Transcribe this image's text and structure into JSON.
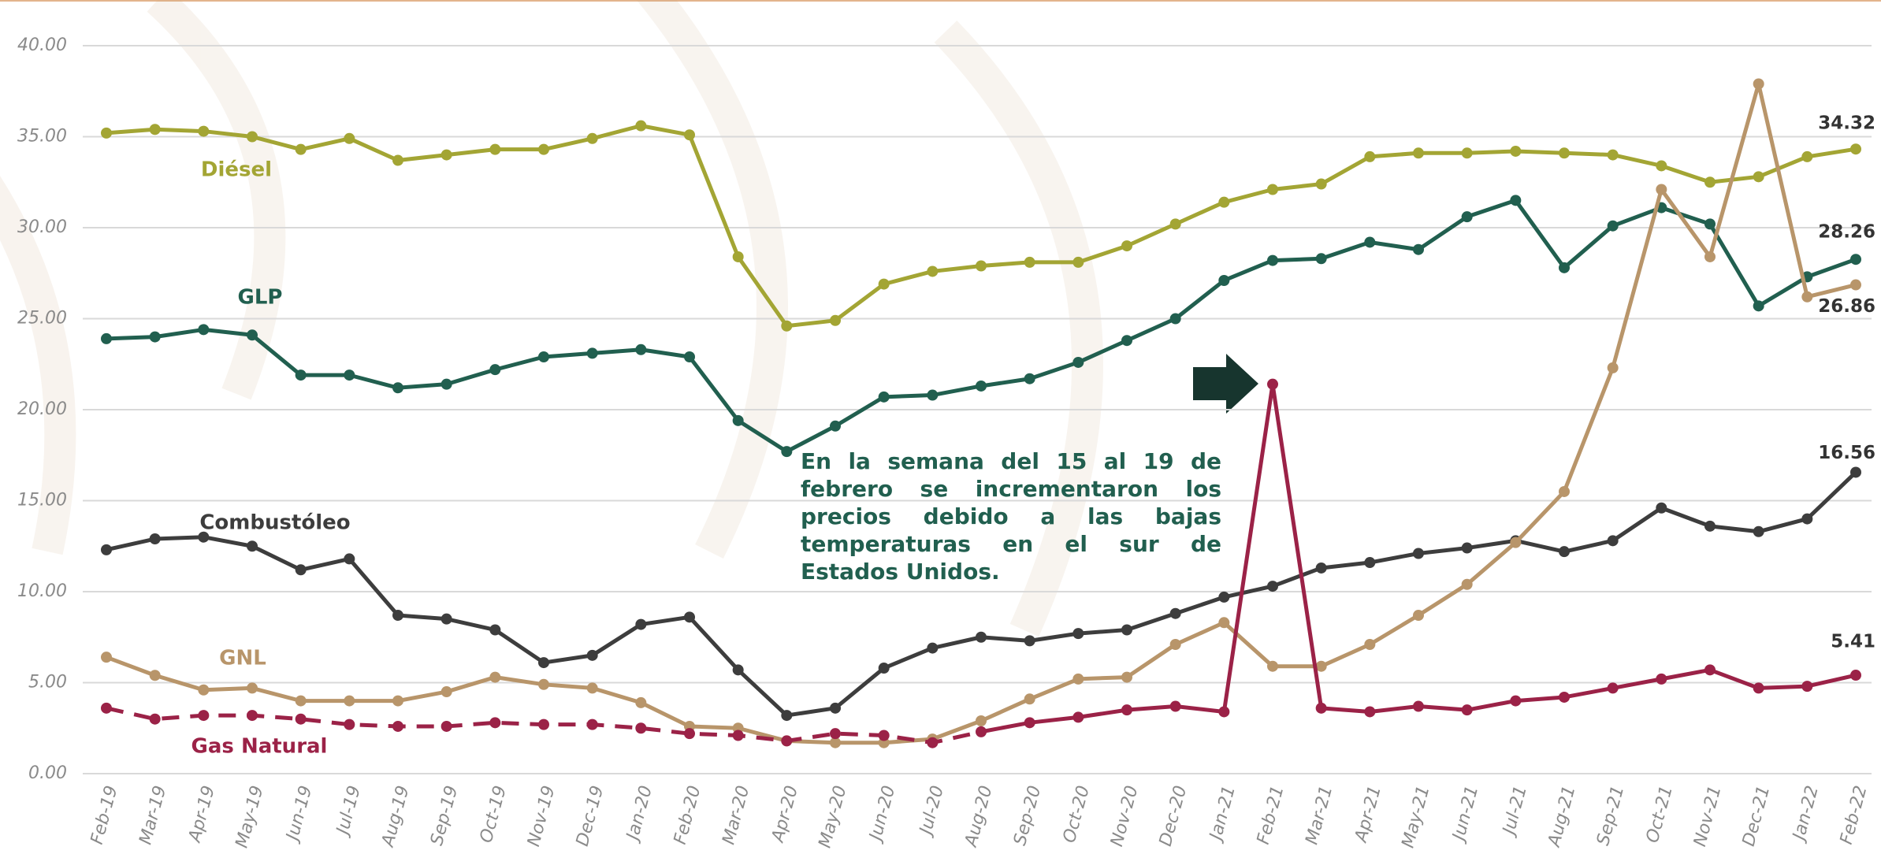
{
  "chart_data": {
    "type": "line",
    "categories": [
      "Feb-19",
      "Mar-19",
      "Apr-19",
      "May-19",
      "Jun-19",
      "Jul-19",
      "Aug-19",
      "Sep-19",
      "Oct-19",
      "Nov-19",
      "Dec-19",
      "Jan-20",
      "Feb-20",
      "Mar-20",
      "Apr-20",
      "May-20",
      "Jun-20",
      "Jul-20",
      "Aug-20",
      "Sep-20",
      "Oct-20",
      "Nov-20",
      "Dec-20",
      "Jan-21",
      "Feb-21",
      "Mar-21",
      "Apr-21",
      "May-21",
      "Jun-21",
      "Jul-21",
      "Aug-21",
      "Sep-21",
      "Oct-21",
      "Nov-21",
      "Dec-21",
      "Jan-22",
      "Feb-22"
    ],
    "series": [
      {
        "name": "Diésel",
        "color": "#a3a534",
        "values": [
          35.2,
          35.4,
          35.3,
          35.0,
          34.3,
          34.9,
          33.7,
          34.0,
          34.3,
          34.3,
          34.9,
          35.6,
          35.1,
          28.4,
          24.6,
          24.9,
          26.9,
          27.6,
          27.9,
          28.1,
          28.1,
          29.0,
          30.2,
          31.4,
          32.1,
          32.4,
          33.9,
          34.1,
          34.1,
          34.2,
          34.1,
          34.0,
          33.4,
          32.5,
          32.8,
          33.9,
          34.32
        ]
      },
      {
        "name": "GLP",
        "color": "#215f4f",
        "values": [
          23.9,
          24.0,
          24.4,
          24.1,
          21.9,
          21.9,
          21.2,
          21.4,
          22.2,
          22.9,
          23.1,
          23.3,
          22.9,
          19.4,
          17.7,
          19.1,
          20.7,
          20.8,
          21.3,
          21.7,
          22.6,
          23.8,
          25.0,
          27.1,
          28.2,
          28.3,
          29.2,
          28.8,
          30.6,
          31.5,
          27.8,
          30.1,
          31.1,
          30.2,
          25.7,
          27.3,
          28.26
        ]
      },
      {
        "name": "Combustóleo",
        "color": "#3d3d3d",
        "values": [
          12.3,
          12.9,
          13.0,
          12.5,
          11.2,
          11.8,
          8.7,
          8.5,
          7.9,
          6.1,
          6.5,
          8.2,
          8.6,
          5.7,
          3.2,
          3.6,
          5.8,
          6.9,
          7.5,
          7.3,
          7.7,
          7.9,
          8.8,
          9.7,
          10.3,
          11.3,
          11.6,
          12.1,
          12.4,
          12.8,
          12.2,
          12.8,
          14.6,
          13.6,
          13.3,
          14.0,
          16.56
        ]
      },
      {
        "name": "GNL",
        "color": "#b8956a",
        "values": [
          6.4,
          5.4,
          4.6,
          4.7,
          4.0,
          4.0,
          4.0,
          4.5,
          5.3,
          4.9,
          4.7,
          3.9,
          2.6,
          2.5,
          1.8,
          1.7,
          1.7,
          1.9,
          2.9,
          4.1,
          5.2,
          5.3,
          7.1,
          8.3,
          5.9,
          5.9,
          7.1,
          8.7,
          10.4,
          12.7,
          15.5,
          22.3,
          32.1,
          28.4,
          37.9,
          26.2,
          26.86
        ]
      },
      {
        "name": "Gas Natural",
        "color": "#9b2247",
        "dashed_through": "Aug-20",
        "values": [
          3.6,
          3.0,
          3.2,
          3.2,
          3.0,
          2.7,
          2.6,
          2.6,
          2.8,
          2.7,
          2.7,
          2.5,
          2.2,
          2.1,
          1.8,
          2.2,
          2.1,
          1.7,
          2.3,
          2.8,
          3.1,
          3.5,
          3.7,
          3.4,
          21.4,
          3.6,
          3.4,
          3.7,
          3.5,
          4.0,
          4.2,
          4.7,
          5.2,
          5.7,
          4.7,
          4.8,
          5.41
        ]
      }
    ],
    "ylim": [
      0,
      40
    ],
    "yticks": [
      {
        "value": 0,
        "label": "0.00"
      },
      {
        "value": 5,
        "label": "5.00"
      },
      {
        "value": 10,
        "label": "10.00"
      },
      {
        "value": 15,
        "label": "15.00"
      },
      {
        "value": 20,
        "label": "20.00"
      },
      {
        "value": 25,
        "label": "25.00"
      },
      {
        "value": 30,
        "label": "30.00"
      },
      {
        "value": 35,
        "label": "35.00"
      },
      {
        "value": 40,
        "label": "40.00"
      }
    ],
    "grid": true,
    "annotation": "En la semana del 15 al 19 de febrero se incrementaron los precios debido a las bajas temperaturas en el sur de Estados Unidos."
  }
}
